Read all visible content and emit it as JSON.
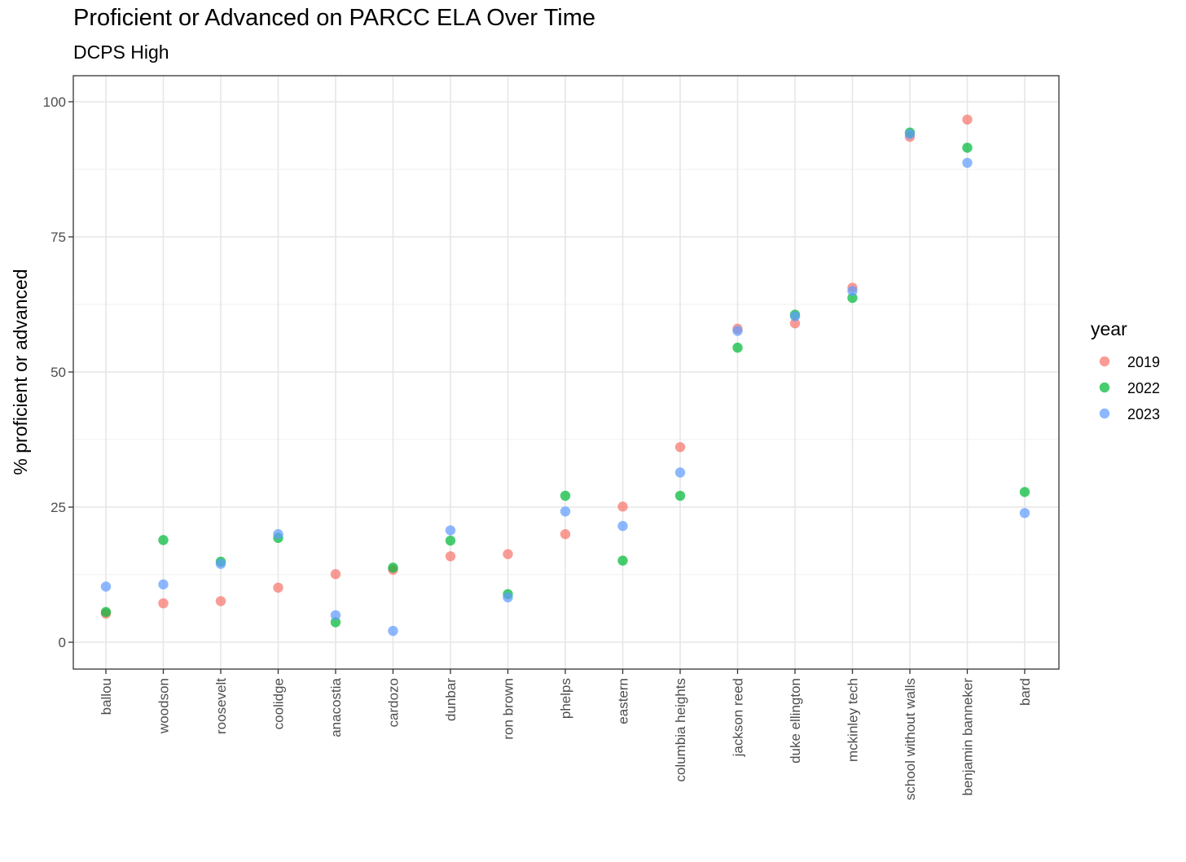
{
  "chart_data": {
    "type": "scatter",
    "title": "Proficient or Advanced on PARCC ELA Over Time",
    "subtitle": "DCPS High",
    "xlabel": "",
    "ylabel": "% proficient or advanced",
    "ylim": [
      -5,
      105
    ],
    "yticks": [
      0,
      25,
      50,
      75,
      100
    ],
    "grid": true,
    "legend_position": "right",
    "legend_title": "year",
    "categories": [
      "ballou",
      "woodson",
      "roosevelt",
      "coolidge",
      "anacostia",
      "cardozo",
      "dunbar",
      "ron brown",
      "phelps",
      "eastern",
      "columbia heights",
      "jackson reed",
      "duke ellington",
      "mckinley tech",
      "school without walls",
      "benjamin banneker",
      "bard"
    ],
    "series": [
      {
        "name": "2019",
        "color": "#F8766D",
        "values": [
          5.3,
          7.2,
          7.6,
          10.1,
          12.6,
          13.4,
          15.9,
          16.3,
          20.0,
          25.1,
          36.1,
          58.0,
          59.0,
          65.6,
          93.5,
          96.7,
          null
        ]
      },
      {
        "name": "2022",
        "color": "#00BA38",
        "values": [
          5.6,
          18.9,
          14.9,
          19.3,
          3.7,
          13.8,
          18.8,
          8.9,
          27.1,
          15.1,
          27.1,
          54.5,
          60.6,
          63.7,
          94.3,
          91.5,
          27.8
        ]
      },
      {
        "name": "2023",
        "color": "#619CFF",
        "values": [
          10.3,
          10.7,
          14.5,
          20.0,
          5.0,
          2.1,
          20.7,
          8.3,
          24.2,
          21.5,
          31.4,
          57.6,
          60.3,
          65.0,
          94.0,
          88.7,
          23.9
        ]
      }
    ]
  }
}
